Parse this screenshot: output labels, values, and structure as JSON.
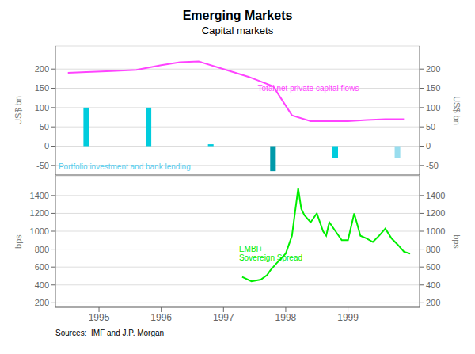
{
  "chart_data": [
    {
      "type": "bar",
      "title": "Emerging Markets",
      "subtitle": "Capital markets",
      "series": [
        {
          "type": "bar",
          "x": [
            1994.8,
            1995.8,
            1996.8,
            1997.8,
            1998.8,
            1999.8
          ],
          "values": [
            100,
            100,
            5,
            -65,
            -30,
            -30
          ],
          "colors": [
            "#00CCDD",
            "#00CCDD",
            "#00CCDD",
            "#009AAA",
            "#00CCDD",
            "#99DDEE"
          ]
        },
        {
          "type": "line",
          "x": [
            1994.5,
            1994.8,
            1995.2,
            1995.6,
            1996.0,
            1996.3,
            1996.6,
            1997.0,
            1997.4,
            1997.8,
            1998.1,
            1998.4,
            1998.7,
            1999.0,
            1999.3,
            1999.6,
            1999.9
          ],
          "values": [
            190,
            192,
            195,
            198,
            210,
            218,
            220,
            200,
            180,
            155,
            80,
            65,
            65,
            65,
            68,
            70,
            70
          ],
          "color": "#FF44FF"
        }
      ],
      "xlim": [
        1994.3,
        2000.15
      ],
      "tick_labels": "y",
      "ylim": [
        -75,
        260
      ],
      "yticks": [
        -50,
        0,
        50,
        100,
        150,
        200
      ],
      "ylabel": "US$ bn",
      "y2lim": [
        -75,
        260
      ],
      "y2ticks": [
        -50,
        0,
        50,
        100,
        150,
        200
      ],
      "y2label": "US$ bn",
      "grid": true,
      "annotations": [
        {
          "text": "Total net private capital flows",
          "x": 1997.55,
          "y": 148,
          "color": "#FF44FF"
        },
        {
          "text": "Portfolio investment and bank lending",
          "x": 1994.35,
          "y": -55,
          "color": "#55CCEE"
        }
      ]
    },
    {
      "type": "line",
      "series": [
        {
          "type": "line",
          "x": [
            1997.3,
            1997.45,
            1997.6,
            1997.7,
            1997.75,
            1997.85,
            1998.0,
            1998.1,
            1998.2,
            1998.25,
            1998.3,
            1998.4,
            1998.5,
            1998.6,
            1998.65,
            1998.7,
            1998.8,
            1998.9,
            1999.0,
            1999.1,
            1999.2,
            1999.3,
            1999.4,
            1999.5,
            1999.6,
            1999.7,
            1999.8,
            1999.9,
            2000.0
          ],
          "values": [
            490,
            440,
            460,
            510,
            560,
            640,
            750,
            950,
            1480,
            1250,
            1180,
            1100,
            1200,
            1000,
            950,
            1100,
            1000,
            900,
            900,
            1200,
            950,
            920,
            880,
            950,
            1030,
            920,
            850,
            770,
            750
          ],
          "color": "#00EE00"
        }
      ],
      "xlim": [
        1994.3,
        2000.15
      ],
      "xticks": [
        1995,
        1996,
        1997,
        1998,
        1999
      ],
      "ylim": [
        150,
        1620
      ],
      "yticks": [
        200,
        400,
        600,
        800,
        1000,
        1200,
        1400
      ],
      "ylabel": "bps",
      "y2lim": [
        150,
        1620
      ],
      "y2ticks": [
        200,
        400,
        600,
        800,
        1000,
        1200,
        1400
      ],
      "y2label": "bps",
      "grid": true,
      "annotations": [
        {
          "text": "EMBI+\nSovereign Spread",
          "x": 1997.25,
          "y": 750,
          "color": "#00EE00"
        }
      ],
      "source": "Sources:  IMF and J.P. Morgan"
    }
  ]
}
